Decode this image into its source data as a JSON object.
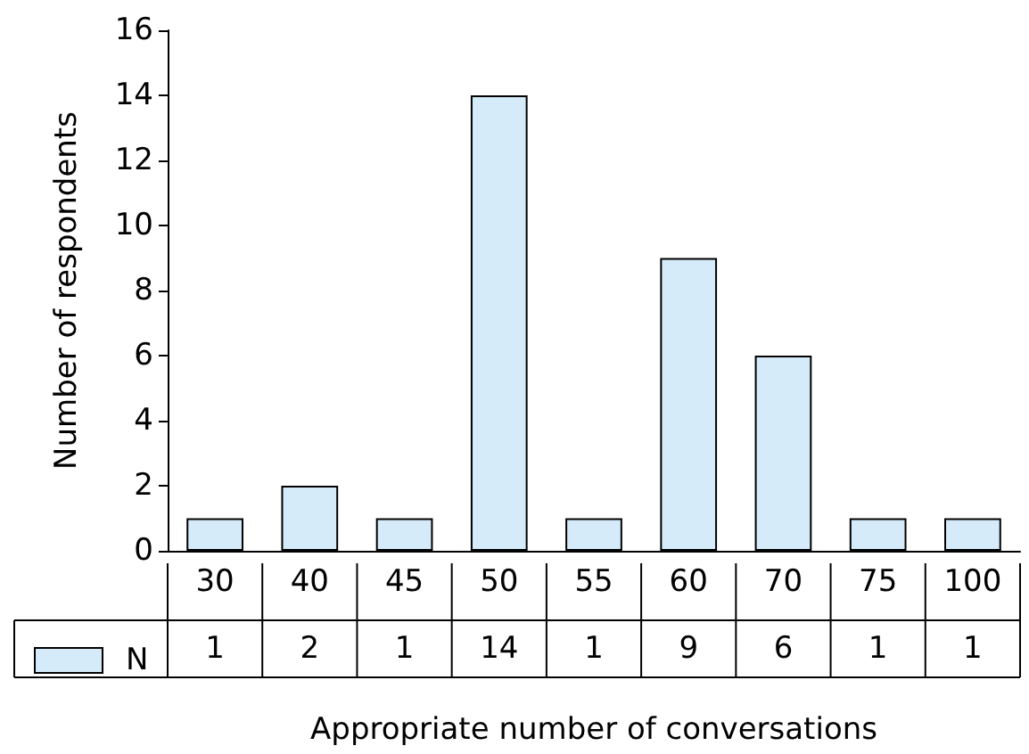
{
  "chart_data": {
    "type": "bar",
    "xlabel": "Appropriate number of conversations",
    "ylabel": "Number of respondents",
    "categories": [
      "30",
      "40",
      "45",
      "50",
      "55",
      "60",
      "70",
      "75",
      "100"
    ],
    "series": [
      {
        "name": "N",
        "color": "#d5ebfa",
        "values": [
          1,
          2,
          1,
          14,
          1,
          9,
          6,
          1,
          1
        ]
      }
    ],
    "ylim": [
      0,
      16
    ],
    "yticks": [
      0,
      2,
      4,
      6,
      8,
      10,
      12,
      14,
      16
    ],
    "grid": false,
    "legend": "bottom left",
    "data_labels": true
  }
}
